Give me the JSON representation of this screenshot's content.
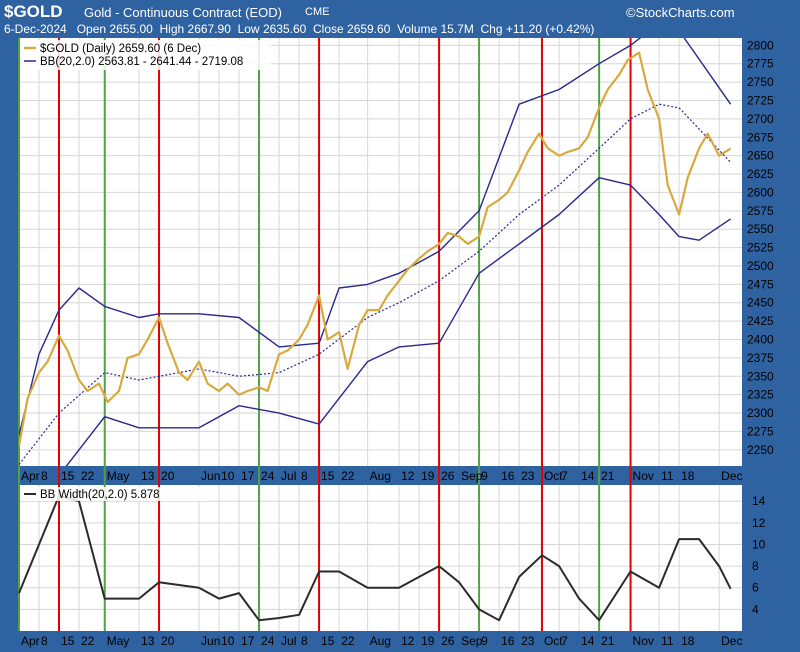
{
  "header": {
    "ticker": "$GOLD",
    "title": "Gold - Continuous Contract (EOD)",
    "exchange": "CME",
    "brand": "©StockCharts.com",
    "date": "6-Dec-2024",
    "open_label": "Open",
    "open": "2655.00",
    "high_label": "High",
    "high": "2667.90",
    "low_label": "Low",
    "low": "2635.60",
    "close_label": "Close",
    "close": "2659.60",
    "volume_label": "Volume",
    "volume": "15.7M",
    "chg_label": "Chg",
    "chg": "+11.20 (+0.42%)"
  },
  "legend": {
    "price": "$GOLD (Daily) 2659.60 (6 Dec)",
    "bb": "BB(20,2.0) 2563.81 - 2641.44 - 2719.08",
    "bbw": "BB Width(20,2.0) 5.878"
  },
  "colors": {
    "frame": "#2f62a0",
    "price": "#d9a93e",
    "band": "#28288f",
    "bbw": "#2b2b2b",
    "red": "#e00000",
    "green": "#52a046",
    "grid": "#d6d6d6"
  },
  "chart_data": [
    {
      "type": "line",
      "title": "$GOLD (Daily)",
      "x_labels": [
        "Apr",
        "8",
        "15",
        "22",
        "May",
        "13",
        "20",
        "Jun",
        "10",
        "17",
        "24",
        "Jul",
        "8",
        "15",
        "22",
        "Aug",
        "12",
        "19",
        "26",
        "Sep",
        "9",
        "16",
        "23",
        "Oct",
        "7",
        "14",
        "21",
        "Nov",
        "11",
        "18",
        "Dec"
      ],
      "x_label_dates": [
        "2024-04-01",
        "2024-04-08",
        "2024-04-15",
        "2024-04-22",
        "2024-05-01",
        "2024-05-13",
        "2024-05-20",
        "2024-06-03",
        "2024-06-10",
        "2024-06-17",
        "2024-06-24",
        "2024-07-01",
        "2024-07-08",
        "2024-07-15",
        "2024-07-22",
        "2024-08-01",
        "2024-08-12",
        "2024-08-19",
        "2024-08-26",
        "2024-09-02",
        "2024-09-09",
        "2024-09-16",
        "2024-09-23",
        "2024-10-01",
        "2024-10-07",
        "2024-10-14",
        "2024-10-21",
        "2024-11-01",
        "2024-11-11",
        "2024-11-18",
        "2024-12-02"
      ],
      "y_ticks": [
        2250,
        2275,
        2300,
        2325,
        2350,
        2375,
        2400,
        2425,
        2450,
        2475,
        2500,
        2525,
        2550,
        2575,
        2600,
        2625,
        2650,
        2675,
        2700,
        2725,
        2750,
        2775,
        2800
      ],
      "ylim": [
        2228,
        2810
      ],
      "xlim": [
        "2024-04-01",
        "2024-12-10"
      ],
      "grid": true,
      "series": [
        {
          "name": "$GOLD (Daily)",
          "dates": [
            "2024-04-01",
            "2024-04-04",
            "2024-04-08",
            "2024-04-11",
            "2024-04-15",
            "2024-04-18",
            "2024-04-22",
            "2024-04-25",
            "2024-04-29",
            "2024-05-02",
            "2024-05-06",
            "2024-05-09",
            "2024-05-13",
            "2024-05-16",
            "2024-05-20",
            "2024-05-23",
            "2024-05-27",
            "2024-05-30",
            "2024-06-03",
            "2024-06-06",
            "2024-06-10",
            "2024-06-13",
            "2024-06-17",
            "2024-06-20",
            "2024-06-24",
            "2024-06-27",
            "2024-07-01",
            "2024-07-04",
            "2024-07-08",
            "2024-07-11",
            "2024-07-15",
            "2024-07-18",
            "2024-07-22",
            "2024-07-25",
            "2024-07-29",
            "2024-08-01",
            "2024-08-05",
            "2024-08-08",
            "2024-08-12",
            "2024-08-15",
            "2024-08-19",
            "2024-08-22",
            "2024-08-26",
            "2024-08-29",
            "2024-09-02",
            "2024-09-05",
            "2024-09-09",
            "2024-09-12",
            "2024-09-16",
            "2024-09-19",
            "2024-09-23",
            "2024-09-26",
            "2024-09-30",
            "2024-10-03",
            "2024-10-07",
            "2024-10-10",
            "2024-10-14",
            "2024-10-17",
            "2024-10-21",
            "2024-10-24",
            "2024-10-28",
            "2024-10-31",
            "2024-11-04",
            "2024-11-07",
            "2024-11-11",
            "2024-11-14",
            "2024-11-18",
            "2024-11-21",
            "2024-11-25",
            "2024-11-28",
            "2024-12-02",
            "2024-12-06"
          ],
          "values": [
            2255,
            2320,
            2355,
            2370,
            2405,
            2385,
            2345,
            2330,
            2340,
            2315,
            2330,
            2375,
            2380,
            2400,
            2430,
            2395,
            2355,
            2345,
            2370,
            2340,
            2330,
            2340,
            2325,
            2330,
            2335,
            2330,
            2380,
            2385,
            2400,
            2420,
            2460,
            2400,
            2410,
            2360,
            2420,
            2440,
            2440,
            2460,
            2480,
            2495,
            2510,
            2520,
            2530,
            2545,
            2540,
            2530,
            2540,
            2580,
            2590,
            2600,
            2630,
            2655,
            2680,
            2660,
            2650,
            2655,
            2660,
            2675,
            2715,
            2740,
            2760,
            2780,
            2790,
            2740,
            2700,
            2610,
            2570,
            2620,
            2660,
            2680,
            2650,
            2659.6
          ]
        },
        {
          "name": "BB upper",
          "dates": [
            "2024-04-01",
            "2024-04-08",
            "2024-04-15",
            "2024-04-22",
            "2024-05-01",
            "2024-05-13",
            "2024-05-20",
            "2024-06-03",
            "2024-06-17",
            "2024-07-01",
            "2024-07-15",
            "2024-07-22",
            "2024-08-01",
            "2024-08-12",
            "2024-08-26",
            "2024-09-09",
            "2024-09-23",
            "2024-10-07",
            "2024-10-21",
            "2024-11-01",
            "2024-11-11",
            "2024-11-18",
            "2024-12-06"
          ],
          "values": [
            2270,
            2380,
            2440,
            2470,
            2445,
            2430,
            2435,
            2435,
            2430,
            2390,
            2395,
            2470,
            2475,
            2490,
            2520,
            2575,
            2720,
            2740,
            2775,
            2800,
            2830,
            2820,
            2720
          ]
        },
        {
          "name": "BB middle",
          "dates": [
            "2024-04-01",
            "2024-04-15",
            "2024-05-01",
            "2024-05-13",
            "2024-06-03",
            "2024-06-17",
            "2024-07-01",
            "2024-07-15",
            "2024-08-01",
            "2024-08-12",
            "2024-08-26",
            "2024-09-09",
            "2024-09-23",
            "2024-10-07",
            "2024-10-21",
            "2024-11-01",
            "2024-11-11",
            "2024-11-18",
            "2024-12-06"
          ],
          "values": [
            2230,
            2300,
            2355,
            2345,
            2360,
            2350,
            2355,
            2380,
            2430,
            2450,
            2480,
            2520,
            2570,
            2610,
            2660,
            2700,
            2720,
            2715,
            2641
          ]
        },
        {
          "name": "BB lower",
          "dates": [
            "2024-04-01",
            "2024-04-15",
            "2024-05-01",
            "2024-05-13",
            "2024-06-03",
            "2024-06-17",
            "2024-07-01",
            "2024-07-15",
            "2024-08-01",
            "2024-08-12",
            "2024-08-26",
            "2024-09-09",
            "2024-09-23",
            "2024-10-07",
            "2024-10-21",
            "2024-11-01",
            "2024-11-11",
            "2024-11-18",
            "2024-11-25",
            "2024-12-06"
          ],
          "values": [
            2200,
            2215,
            2295,
            2280,
            2280,
            2310,
            2300,
            2285,
            2370,
            2390,
            2395,
            2490,
            2530,
            2570,
            2620,
            2610,
            2570,
            2540,
            2535,
            2564
          ]
        }
      ]
    },
    {
      "type": "line",
      "title": "BB Width(20,2.0)",
      "y_ticks": [
        4,
        6,
        8,
        10,
        12,
        14
      ],
      "ylim": [
        2,
        15.5
      ],
      "xlim": [
        "2024-04-01",
        "2024-12-10"
      ],
      "grid": true,
      "series": [
        {
          "name": "BB Width(20,2.0)",
          "dates": [
            "2024-04-01",
            "2024-04-08",
            "2024-04-15",
            "2024-04-22",
            "2024-05-01",
            "2024-05-13",
            "2024-05-20",
            "2024-06-03",
            "2024-06-10",
            "2024-06-17",
            "2024-06-24",
            "2024-07-01",
            "2024-07-08",
            "2024-07-15",
            "2024-07-22",
            "2024-08-01",
            "2024-08-12",
            "2024-08-19",
            "2024-08-26",
            "2024-09-02",
            "2024-09-09",
            "2024-09-16",
            "2024-09-23",
            "2024-10-01",
            "2024-10-07",
            "2024-10-14",
            "2024-10-21",
            "2024-11-01",
            "2024-11-11",
            "2024-11-18",
            "2024-11-25",
            "2024-12-02",
            "2024-12-06"
          ],
          "values": [
            5.5,
            10,
            14.5,
            14,
            5,
            5,
            6.5,
            6,
            5,
            5.5,
            3,
            3.2,
            3.5,
            7.5,
            7.5,
            6,
            6,
            7,
            8,
            6.5,
            4,
            3,
            7,
            9,
            8,
            5,
            3,
            7.5,
            6,
            10.5,
            10.5,
            8,
            5.9
          ]
        }
      ]
    }
  ],
  "markers": {
    "red_lines": [
      "2024-04-15",
      "2024-05-20",
      "2024-07-15",
      "2024-08-26",
      "2024-10-01",
      "2024-11-01"
    ],
    "green_lines": [
      "2024-04-01",
      "2024-05-01",
      "2024-06-24",
      "2024-09-09",
      "2024-10-21"
    ]
  }
}
